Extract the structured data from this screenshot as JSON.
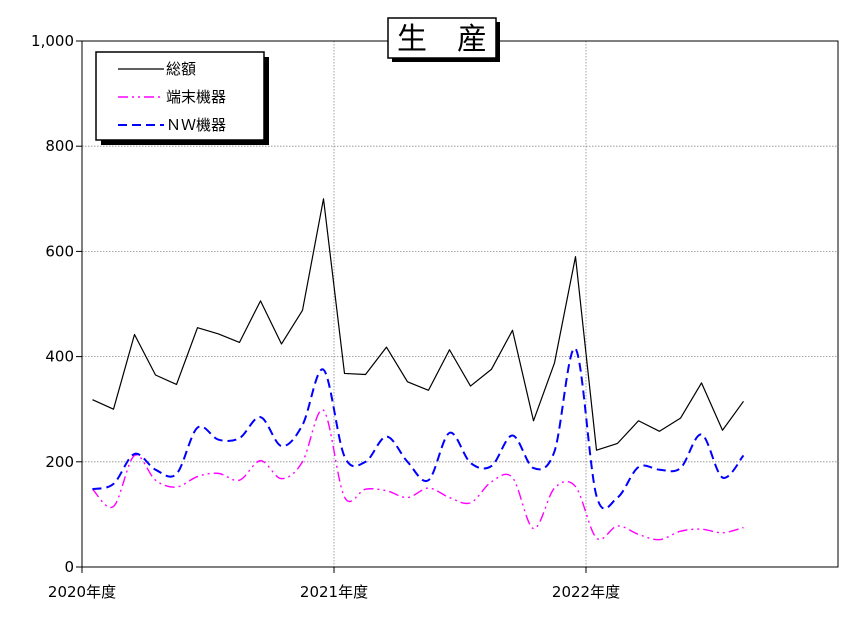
{
  "chart_data": {
    "type": "line",
    "title": "生　産",
    "ylim": [
      0,
      1000
    ],
    "y_ticks": [
      "0",
      "200",
      "400",
      "600",
      "800",
      "1,000"
    ],
    "y_tick_values": [
      0,
      200,
      400,
      600,
      800,
      1000
    ],
    "x_labels": [
      "2020年度",
      "2021年度",
      "2022年度"
    ],
    "x_label_month_index": [
      0,
      12,
      24
    ],
    "x_months_span": 36,
    "grid": true,
    "legend_placement": "top-left",
    "series": [
      {
        "name": "総額",
        "color": "#000000",
        "style": "solid",
        "values": [
          318,
          300,
          442,
          365,
          347,
          455,
          443,
          427,
          506,
          424,
          488,
          700,
          368,
          366,
          418,
          352,
          336,
          413,
          344,
          376,
          450,
          278,
          388,
          590,
          222,
          235,
          278,
          258,
          283,
          350,
          260,
          315
        ]
      },
      {
        "name": "端末機器",
        "color": "#ff00ff",
        "style": "dashdotdot",
        "values": [
          148,
          115,
          212,
          165,
          152,
          172,
          178,
          165,
          202,
          168,
          200,
          298,
          133,
          148,
          145,
          132,
          150,
          132,
          122,
          162,
          170,
          73,
          150,
          153,
          55,
          78,
          62,
          52,
          68,
          72,
          65,
          75
        ]
      },
      {
        "name": "ＮＷ機器",
        "color": "#0000ff",
        "style": "dashed",
        "values": [
          148,
          158,
          215,
          185,
          177,
          265,
          242,
          245,
          285,
          230,
          270,
          375,
          210,
          200,
          248,
          200,
          165,
          255,
          198,
          192,
          250,
          188,
          220,
          415,
          135,
          132,
          190,
          185,
          188,
          252,
          170,
          212
        ]
      }
    ]
  }
}
